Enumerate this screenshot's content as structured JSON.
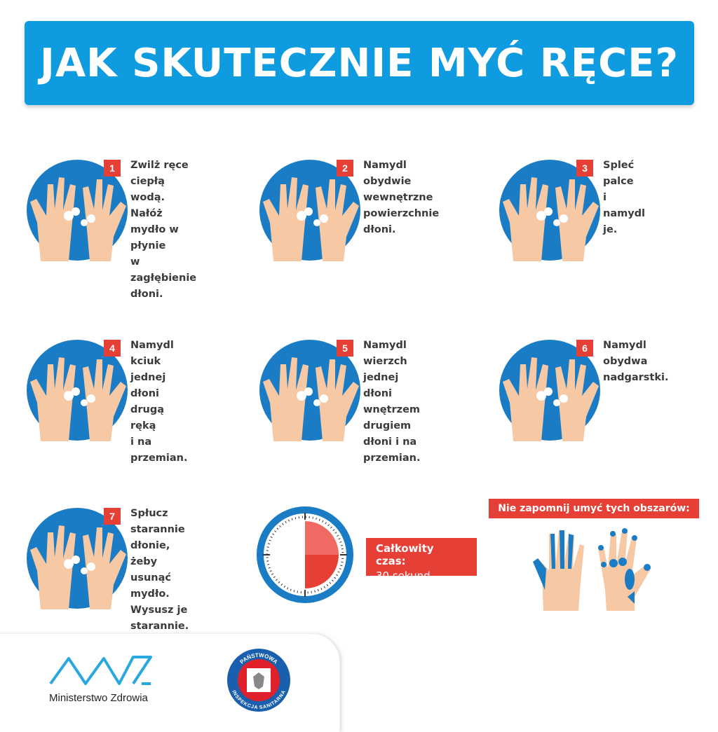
{
  "title": "JAK SKUTECZNIE MYĆ RĘCE?",
  "colors": {
    "banner": "#0f9be0",
    "circle": "#1a7cc4",
    "accent": "#e63f36",
    "skin": "#f6c8a4"
  },
  "steps": [
    {
      "num": "1",
      "text": "Zwilż ręce ciepłą\nwodą. Nałóż\nmydło w płynie\nw zagłębienie\ndłoni."
    },
    {
      "num": "2",
      "text": "Namydl obydwie\nwewnętrzne\npowierzchnie dłoni."
    },
    {
      "num": "3",
      "text": "Spleć palce\ni namydl je."
    },
    {
      "num": "4",
      "text": "Namydl kciuk\njednej dłoni\ndrugą ręką\ni na przemian."
    },
    {
      "num": "5",
      "text": "Namydl wierzch\njednej dłoni\nwnętrzem drugiem\ndłoni i na przemian."
    },
    {
      "num": "6",
      "text": "Namydl obydwa\nnadgarstki."
    },
    {
      "num": "7",
      "text": "Spłucz starannie\ndłonie, żeby usunąć\nmydło. Wysusz je\nstarannie."
    }
  ],
  "timer": {
    "label": "Całkowity czas:",
    "value": "30 sekund",
    "fraction": 0.5
  },
  "reminder": "Nie zapomnij umyć tych obszarów:",
  "logos": {
    "ministry": "Ministerstwo Zdrowia",
    "inspection_top": "PAŃSTWOWA",
    "inspection_bottom": "INSPEKCJA SANITARNA"
  }
}
